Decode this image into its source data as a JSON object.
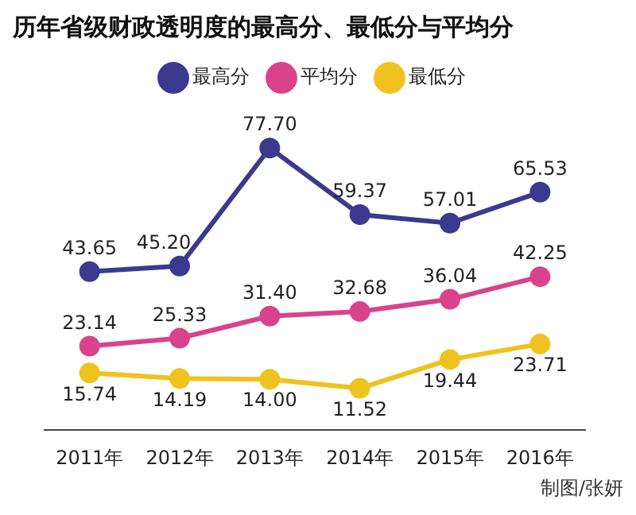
{
  "chart_data": {
    "type": "line",
    "title": "历年省级财政透明度的最高分、最低分与平均分",
    "categories": [
      "2011年",
      "2012年",
      "2013年",
      "2014年",
      "2015年",
      "2016年"
    ],
    "series": [
      {
        "name": "最高分",
        "color": "#3b3a8e",
        "values": [
          43.65,
          45.2,
          77.7,
          59.37,
          57.01,
          65.53
        ],
        "value_labels": [
          "43.65",
          "45.20",
          "77.70",
          "59.37",
          "57.01",
          "65.53"
        ]
      },
      {
        "name": "平均分",
        "color": "#d9438b",
        "values": [
          23.14,
          25.33,
          31.4,
          32.68,
          36.04,
          42.25
        ],
        "value_labels": [
          "23.14",
          "25.33",
          "31.40",
          "32.68",
          "36.04",
          "42.25"
        ]
      },
      {
        "name": "最低分",
        "color": "#f0c21e",
        "values": [
          15.74,
          14.19,
          14.0,
          11.52,
          19.44,
          23.71
        ],
        "value_labels": [
          "15.74",
          "14.19",
          "14.00",
          "11.52",
          "19.44",
          "23.71"
        ]
      }
    ],
    "marker": "circle",
    "line_style": "solid",
    "legend": "top",
    "grid": false,
    "annotations": [
      "制图/张妍"
    ]
  }
}
